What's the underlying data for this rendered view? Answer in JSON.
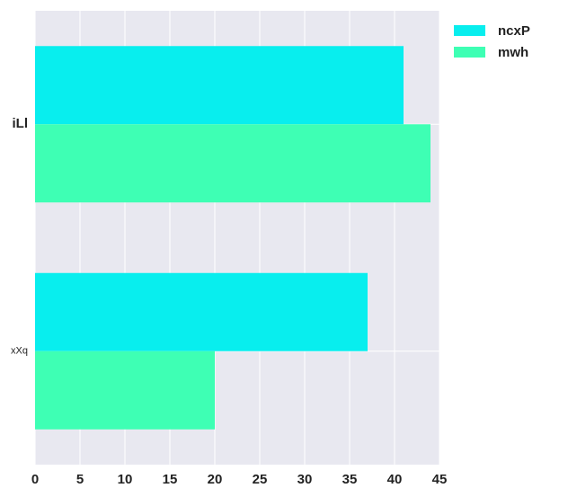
{
  "chart_data": {
    "type": "bar",
    "orientation": "horizontal",
    "categories": [
      "iLl",
      "xXq"
    ],
    "series": [
      {
        "name": "ncxP",
        "values": [
          41,
          37
        ],
        "color": "#08eeee"
      },
      {
        "name": "mwh",
        "values": [
          44,
          20
        ],
        "color": "#3effb4"
      }
    ],
    "xlim": [
      0,
      45
    ],
    "xticks": [
      "0",
      "5",
      "10",
      "15",
      "20",
      "25",
      "30",
      "35",
      "40",
      "45"
    ],
    "grid": true,
    "legend_position": "top-right",
    "background_color": "#e8e8f0"
  }
}
